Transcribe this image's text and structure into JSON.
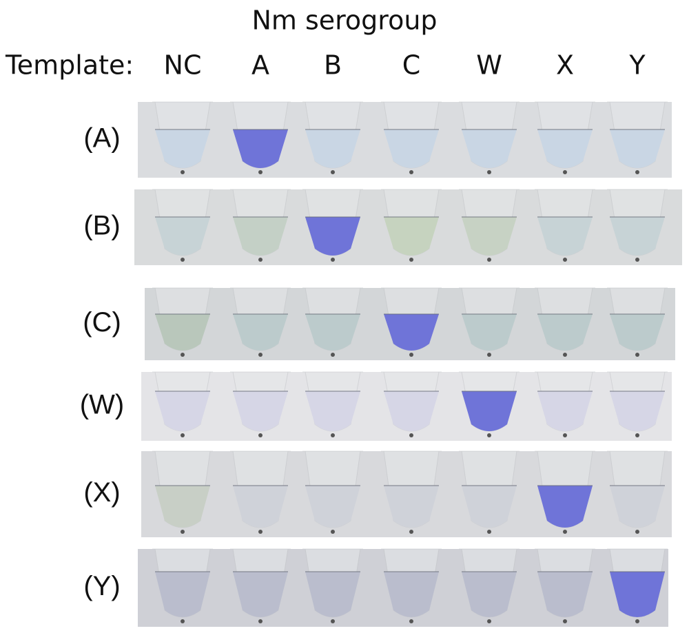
{
  "header": {
    "title": "Nm serogroup",
    "template_label": "Template:",
    "columns": [
      "NC",
      "A",
      "B",
      "C",
      "W",
      "X",
      "Y"
    ]
  },
  "rows": [
    "(A)",
    "(B)",
    "(C)",
    "(W)",
    "(X)",
    "(Y)"
  ]
}
